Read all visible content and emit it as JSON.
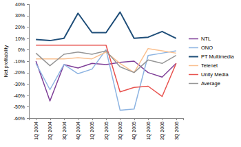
{
  "chart_data": {
    "type": "line",
    "y_label": "Net profitability",
    "categories": [
      "1Q 2004",
      "2Q 2004",
      "3Q 2004",
      "4Q 2004",
      "1Q 2005",
      "2Q 2005",
      "3Q 2005",
      "4Q 2005",
      "1Q 2006",
      "2Q 2006",
      "3Q 2006"
    ],
    "series": [
      {
        "name": "NTL",
        "color": "#7f3f98",
        "values": [
          -10,
          -45,
          -13,
          -16,
          -12,
          -13,
          -11,
          -10,
          -20,
          -24,
          -12
        ]
      },
      {
        "name": "ONO",
        "color": "#8db4e2",
        "values": [
          -12,
          -35,
          -13,
          -21,
          -17,
          0,
          -53,
          -52,
          -5,
          -3,
          -1
        ]
      },
      {
        "name": "PT Multimedia",
        "color": "#1f4e79",
        "values": [
          9,
          8,
          10,
          32,
          15,
          15,
          33,
          10,
          11,
          16,
          10
        ]
      },
      {
        "name": "Telenet",
        "color": "#fac090",
        "values": [
          -8,
          -8,
          -8,
          -7,
          -8,
          -2,
          -12,
          -20,
          1,
          -1,
          -3
        ]
      },
      {
        "name": "Unity Media",
        "color": "#e8534f",
        "values": [
          4,
          4,
          4,
          4,
          4,
          4,
          -37,
          -33,
          -32,
          -41,
          -12
        ]
      },
      {
        "name": "Average",
        "color": "#969696",
        "values": [
          -3,
          -14,
          -4,
          -2,
          -4,
          -1,
          -15,
          -20,
          -9,
          -12,
          -5
        ]
      }
    ],
    "ylim": [
      -60,
      40
    ],
    "yticks": [
      {
        "value": -60,
        "label": "-60%"
      },
      {
        "value": -50,
        "label": "-50%"
      },
      {
        "value": -40,
        "label": "-40%"
      },
      {
        "value": -30,
        "label": "-30%"
      },
      {
        "value": -20,
        "label": "-20%"
      },
      {
        "value": -10,
        "label": "-10%"
      },
      {
        "value": 0,
        "label": "0%"
      },
      {
        "value": 10,
        "label": "10%"
      },
      {
        "value": 20,
        "label": "20%"
      },
      {
        "value": 30,
        "label": "30%"
      },
      {
        "value": 40,
        "label": "40%"
      }
    ],
    "grid": false,
    "legend": "right"
  }
}
